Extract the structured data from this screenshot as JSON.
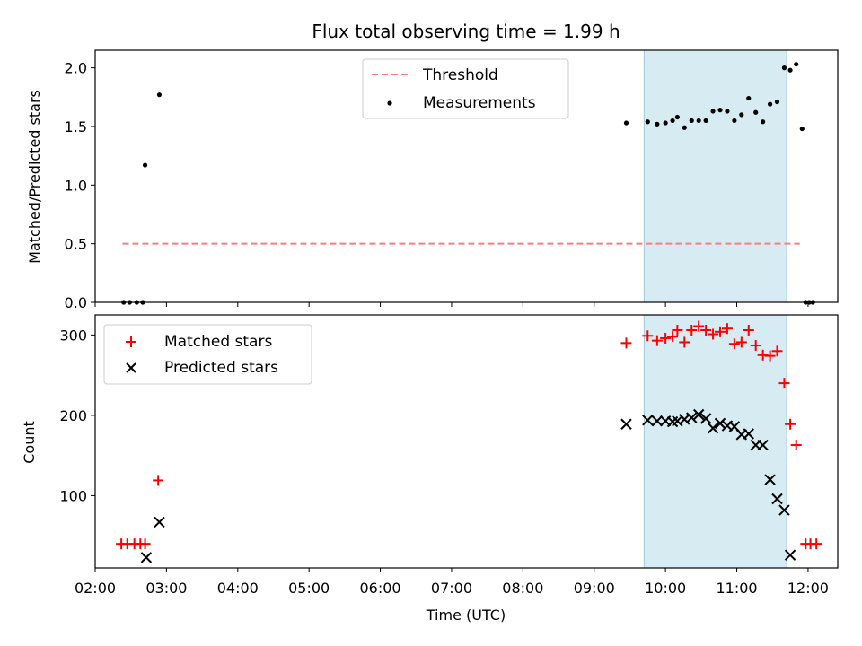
{
  "chart_data": [
    {
      "type": "scatter",
      "title": "Flux total observing time = 1.99 h",
      "xlabel": "",
      "ylabel": "Matched/Predicted stars",
      "xlim": [
        "02:00",
        "12:25"
      ],
      "ylim": [
        0,
        2.15
      ],
      "yticks": [
        0.0,
        0.5,
        1.0,
        1.5,
        2.0
      ],
      "ytick_labels": [
        "0.0",
        "0.5",
        "1.0",
        "1.5",
        "2.0"
      ],
      "shaded_interval": [
        "09:42",
        "11:42"
      ],
      "threshold": {
        "name": "Threshold",
        "value": 0.5,
        "x_start": "02:23",
        "x_end": "11:53",
        "color": "#ff7b7b",
        "style": "dashed"
      },
      "legend": {
        "position": "top-center",
        "entries": [
          "Threshold",
          "Measurements"
        ]
      },
      "series": [
        {
          "name": "Measurements",
          "marker": "dot",
          "color": "#000000",
          "points": [
            [
              "02:24",
              0.0
            ],
            [
              "02:29",
              0.0
            ],
            [
              "02:35",
              0.0
            ],
            [
              "02:40",
              0.0
            ],
            [
              "02:42",
              1.17
            ],
            [
              "02:54",
              1.77
            ],
            [
              "09:27",
              1.53
            ],
            [
              "09:45",
              1.54
            ],
            [
              "09:53",
              1.52
            ],
            [
              "10:00",
              1.53
            ],
            [
              "10:06",
              1.55
            ],
            [
              "10:10",
              1.58
            ],
            [
              "10:16",
              1.49
            ],
            [
              "10:22",
              1.55
            ],
            [
              "10:28",
              1.55
            ],
            [
              "10:34",
              1.55
            ],
            [
              "10:40",
              1.63
            ],
            [
              "10:46",
              1.64
            ],
            [
              "10:52",
              1.63
            ],
            [
              "10:58",
              1.55
            ],
            [
              "11:04",
              1.6
            ],
            [
              "11:10",
              1.74
            ],
            [
              "11:16",
              1.62
            ],
            [
              "11:22",
              1.54
            ],
            [
              "11:28",
              1.69
            ],
            [
              "11:34",
              1.71
            ],
            [
              "11:40",
              2.0
            ],
            [
              "11:45",
              1.98
            ],
            [
              "11:50",
              2.03
            ],
            [
              "11:55",
              1.48
            ],
            [
              "11:58",
              0.0
            ],
            [
              "12:01",
              0.0
            ],
            [
              "12:04",
              0.0
            ]
          ]
        }
      ]
    },
    {
      "type": "scatter",
      "title": "",
      "xlabel": "Time (UTC)",
      "ylabel": "Count",
      "xlim": [
        "02:00",
        "12:25"
      ],
      "ylim": [
        10,
        325
      ],
      "yticks": [
        100,
        200,
        300
      ],
      "ytick_labels": [
        "100",
        "200",
        "300"
      ],
      "xticks": [
        "02:00",
        "03:00",
        "04:00",
        "05:00",
        "06:00",
        "07:00",
        "08:00",
        "09:00",
        "10:00",
        "11:00",
        "12:00"
      ],
      "shaded_interval": [
        "09:42",
        "11:42"
      ],
      "legend": {
        "position": "top-left",
        "entries": [
          "Matched stars",
          "Predicted stars"
        ]
      },
      "series": [
        {
          "name": "Matched stars",
          "marker": "plus",
          "color": "#ff0000",
          "points": [
            [
              "02:22",
              40
            ],
            [
              "02:27",
              40
            ],
            [
              "02:33",
              40
            ],
            [
              "02:38",
              40
            ],
            [
              "02:42",
              40
            ],
            [
              "02:53",
              119
            ],
            [
              "09:27",
              290
            ],
            [
              "09:45",
              299
            ],
            [
              "09:53",
              293
            ],
            [
              "10:00",
              296
            ],
            [
              "10:06",
              298
            ],
            [
              "10:10",
              306
            ],
            [
              "10:16",
              291
            ],
            [
              "10:22",
              306
            ],
            [
              "10:28",
              311
            ],
            [
              "10:34",
              306
            ],
            [
              "10:40",
              301
            ],
            [
              "10:46",
              304
            ],
            [
              "10:52",
              308
            ],
            [
              "10:58",
              289
            ],
            [
              "11:04",
              291
            ],
            [
              "11:10",
              306
            ],
            [
              "11:16",
              287
            ],
            [
              "11:22",
              275
            ],
            [
              "11:28",
              274
            ],
            [
              "11:34",
              280
            ],
            [
              "11:40",
              240
            ],
            [
              "11:45",
              189
            ],
            [
              "11:50",
              163
            ],
            [
              "11:58",
              40
            ],
            [
              "12:02",
              40
            ],
            [
              "12:07",
              40
            ]
          ]
        },
        {
          "name": "Predicted stars",
          "marker": "x",
          "color": "#000000",
          "points": [
            [
              "02:43",
              23
            ],
            [
              "02:54",
              67
            ],
            [
              "09:27",
              189
            ],
            [
              "09:45",
              194
            ],
            [
              "09:53",
              193
            ],
            [
              "10:00",
              193
            ],
            [
              "10:06",
              192
            ],
            [
              "10:10",
              193
            ],
            [
              "10:16",
              195
            ],
            [
              "10:22",
              197
            ],
            [
              "10:28",
              201
            ],
            [
              "10:34",
              196
            ],
            [
              "10:40",
              184
            ],
            [
              "10:46",
              190
            ],
            [
              "10:52",
              187
            ],
            [
              "10:58",
              186
            ],
            [
              "11:04",
              176
            ],
            [
              "11:10",
              177
            ],
            [
              "11:16",
              163
            ],
            [
              "11:22",
              163
            ],
            [
              "11:28",
              120
            ],
            [
              "11:34",
              96
            ],
            [
              "11:40",
              82
            ],
            [
              "11:45",
              26
            ]
          ]
        }
      ]
    }
  ]
}
